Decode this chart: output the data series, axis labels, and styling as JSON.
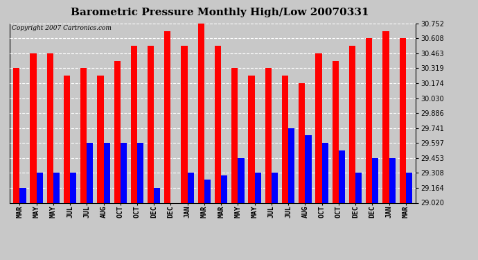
{
  "title": "Barometric Pressure Monthly High/Low 20070331",
  "copyright": "Copyright 2007 Cartronics.com",
  "categories": [
    "MAR",
    "MAY",
    "MAY",
    "JUL",
    "JUL",
    "AUG",
    "OCT",
    "OCT",
    "DEC",
    "DEC",
    "JAN",
    "MAR",
    "MAR",
    "MAY",
    "MAY",
    "JUL",
    "JUL",
    "AUG",
    "OCT",
    "OCT",
    "DEC",
    "DEC",
    "JAN",
    "MAR"
  ],
  "highs": [
    30.319,
    30.463,
    30.463,
    30.246,
    30.319,
    30.246,
    30.39,
    30.536,
    30.536,
    30.68,
    30.536,
    30.752,
    30.536,
    30.319,
    30.246,
    30.319,
    30.246,
    30.174,
    30.463,
    30.39,
    30.536,
    30.608,
    30.68,
    30.608
  ],
  "lows": [
    29.164,
    29.308,
    29.308,
    29.308,
    29.597,
    29.597,
    29.597,
    29.597,
    29.164,
    29.02,
    29.308,
    29.246,
    29.283,
    29.453,
    29.308,
    29.308,
    29.741,
    29.67,
    29.597,
    29.525,
    29.308,
    29.453,
    29.453,
    29.308
  ],
  "bar_width": 0.38,
  "ymin": 29.02,
  "ymax": 30.752,
  "yticks": [
    29.02,
    29.164,
    29.308,
    29.453,
    29.597,
    29.741,
    29.886,
    30.03,
    30.174,
    30.319,
    30.463,
    30.608,
    30.752
  ],
  "high_color": "#FF0000",
  "low_color": "#0000FF",
  "bg_color": "#C8C8C8",
  "plot_bg_color": "#C8C8C8",
  "grid_color": "#FFFFFF",
  "title_fontsize": 11,
  "tick_fontsize": 7,
  "copyright_fontsize": 6.5
}
